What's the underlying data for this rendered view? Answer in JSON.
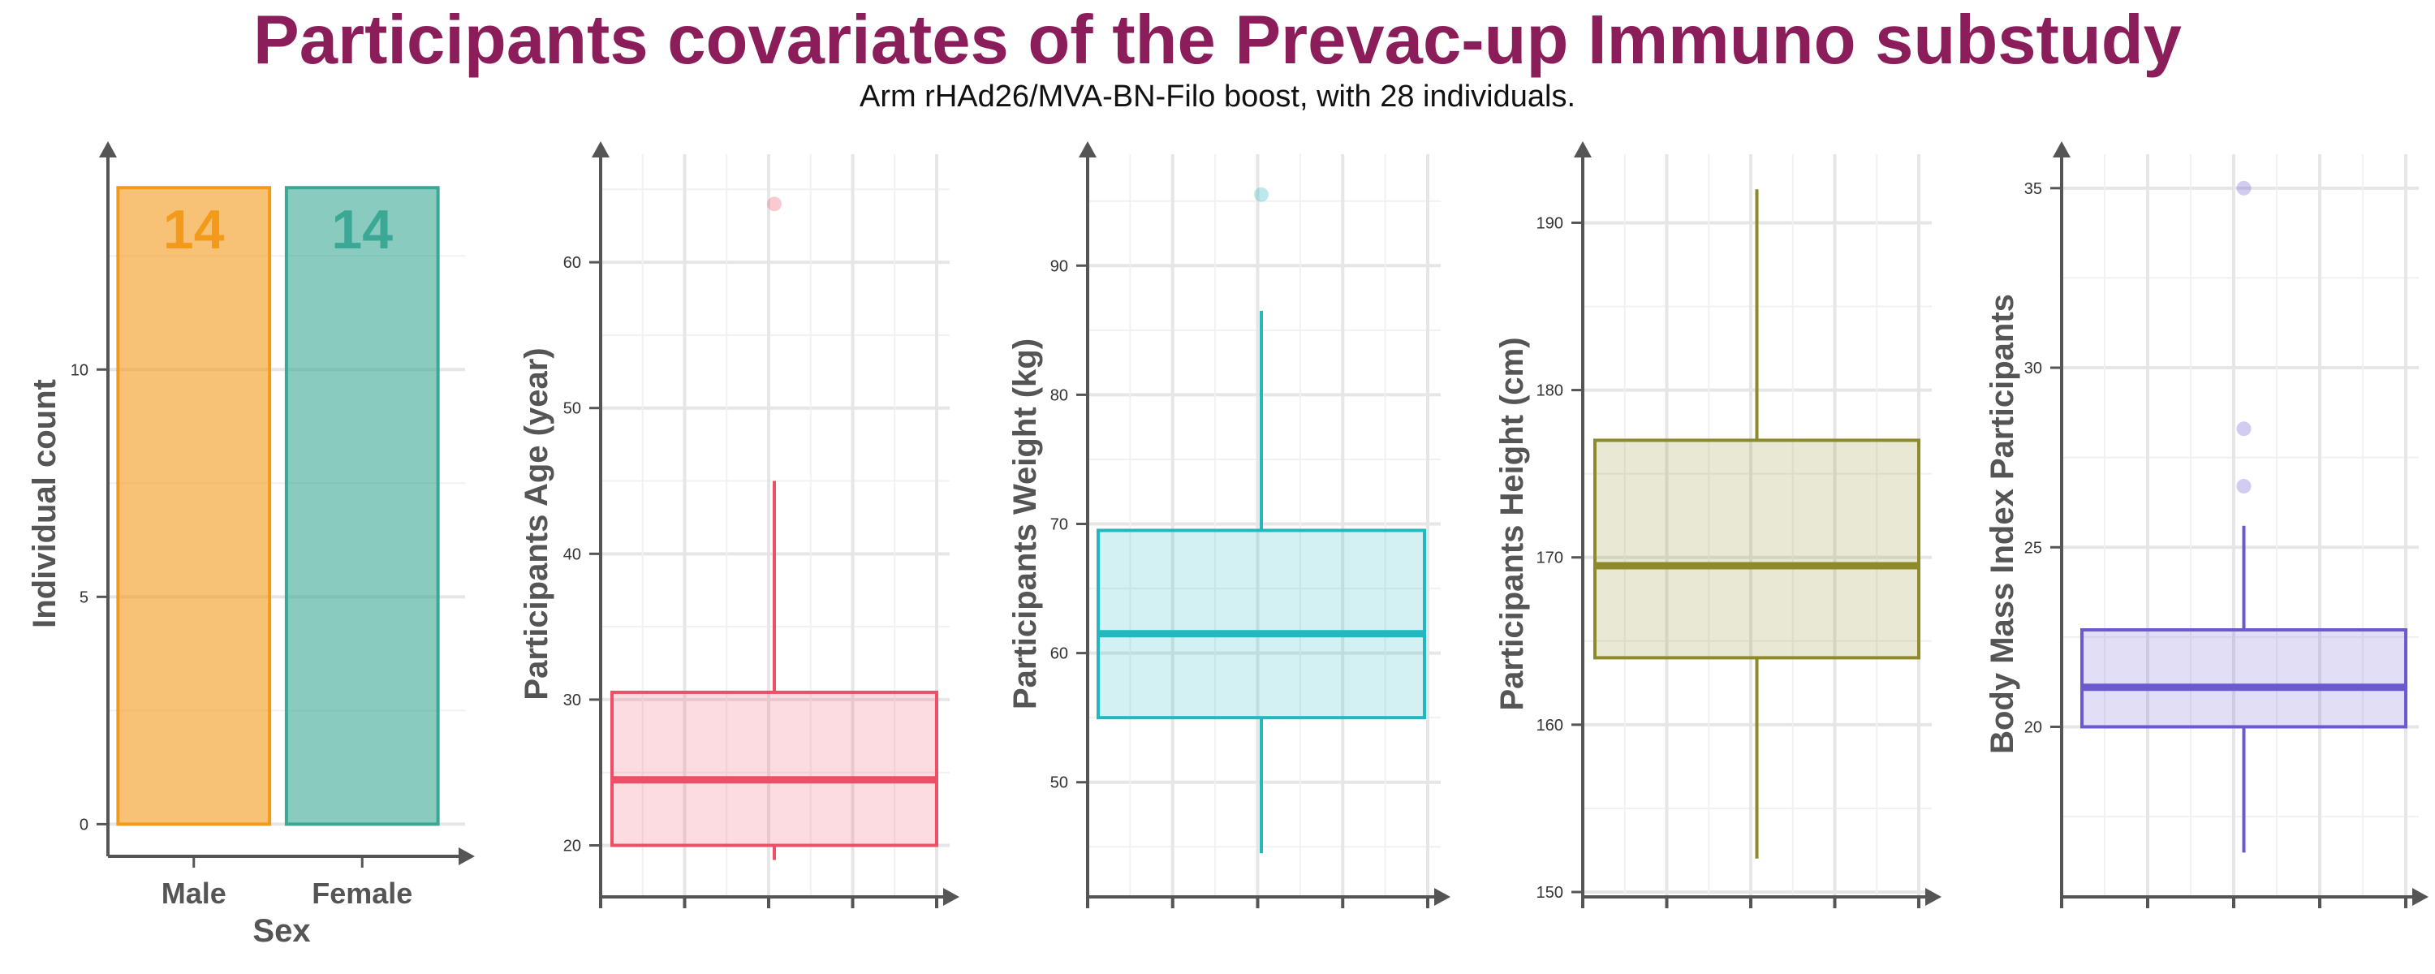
{
  "title": "Participants covariates of the Prevac-up Immuno substudy",
  "subtitle": "Arm rHAd26/MVA-BN-Filo boost, with 28 individuals.",
  "colors": {
    "title": "#8B1E5A",
    "axis": "#555555",
    "grid": "#e6e6e6",
    "male": "#F49A1B",
    "female": "#3BA895",
    "age": "#EE4F67",
    "weight": "#23B7C0",
    "height": "#8C8A2A",
    "bmi": "#6A5ACD"
  },
  "chart_data": [
    {
      "type": "bar",
      "categories": [
        "Male",
        "Female"
      ],
      "values": [
        14,
        14
      ],
      "data_labels": [
        "14",
        "14"
      ],
      "xlabel": "Sex",
      "ylabel": "Individual count",
      "ylim": [
        -0.6,
        14.7
      ],
      "yticks": [
        0,
        5,
        10
      ],
      "ytick_labels": [
        "0",
        "5",
        "10"
      ],
      "colors": [
        "#F49A1B",
        "#3BA895"
      ],
      "grid": true
    },
    {
      "type": "box",
      "ylabel": "Participants Age (year)",
      "ylim": [
        16.8,
        67.3
      ],
      "yticks": [
        20,
        30,
        40,
        50,
        60
      ],
      "ytick_labels": [
        "20",
        "30",
        "40",
        "50",
        "60"
      ],
      "box": {
        "lower_whisker": 19,
        "q1": 20,
        "median": 24.5,
        "q3": 30.5,
        "upper_whisker": 45
      },
      "outliers": [
        64
      ],
      "color": "#EE4F67",
      "grid": true
    },
    {
      "type": "box",
      "ylabel": "Participants Weight (kg)",
      "ylim": [
        41.5,
        98.5
      ],
      "yticks": [
        50,
        60,
        70,
        80,
        90
      ],
      "ytick_labels": [
        "50",
        "60",
        "70",
        "80",
        "90"
      ],
      "box": {
        "lower_whisker": 44.5,
        "q1": 55,
        "median": 61.5,
        "q3": 69.5,
        "upper_whisker": 86.5
      },
      "outliers": [
        95.5
      ],
      "color": "#23B7C0",
      "grid": true
    },
    {
      "type": "box",
      "ylabel": "Participants Height (cm)",
      "ylim": [
        150,
        194
      ],
      "yticks": [
        150,
        160,
        170,
        180,
        190
      ],
      "ytick_labels": [
        "150",
        "160",
        "170",
        "180",
        "190"
      ],
      "box": {
        "lower_whisker": 152,
        "q1": 164,
        "median": 169.5,
        "q3": 177,
        "upper_whisker": 192
      },
      "outliers": [],
      "color": "#8C8A2A",
      "grid": true
    },
    {
      "type": "box",
      "ylabel": "Body Mass Index Participants",
      "ylim": [
        15.4,
        35.9
      ],
      "yticks": [
        20,
        25,
        30,
        35
      ],
      "ytick_labels": [
        "20",
        "25",
        "30",
        "35"
      ],
      "box": {
        "lower_whisker": 16.5,
        "q1": 20,
        "median": 21.1,
        "q3": 22.7,
        "upper_whisker": 25.6
      },
      "outliers": [
        35,
        28.3,
        26.7
      ],
      "color": "#6A5ACD",
      "grid": true
    }
  ]
}
